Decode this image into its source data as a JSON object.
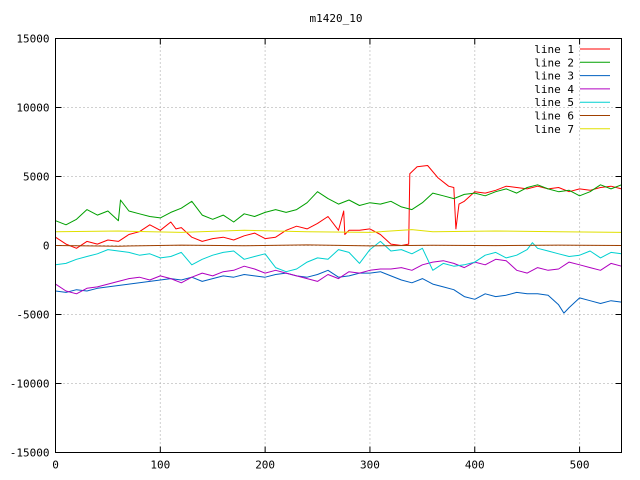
{
  "chart_data": {
    "type": "line",
    "title": "m1420_10",
    "xlabel": "",
    "ylabel": "",
    "xlim": [
      0,
      540
    ],
    "ylim": [
      -15000,
      15000
    ],
    "xticks": [
      0,
      100,
      200,
      300,
      400,
      500
    ],
    "yticks": [
      -15000,
      -10000,
      -5000,
      0,
      5000,
      10000,
      15000
    ],
    "grid": true,
    "legend_position": "top-right",
    "series": [
      {
        "name": "line 1",
        "color": "#ff0000",
        "x": [
          0,
          10,
          20,
          30,
          40,
          50,
          60,
          70,
          80,
          90,
          100,
          110,
          115,
          120,
          130,
          140,
          150,
          160,
          170,
          180,
          190,
          200,
          210,
          220,
          230,
          240,
          250,
          260,
          270,
          275,
          276,
          280,
          290,
          300,
          310,
          320,
          330,
          337,
          338,
          345,
          355,
          365,
          375,
          380,
          382,
          385,
          390,
          400,
          410,
          420,
          430,
          440,
          450,
          460,
          470,
          480,
          490,
          500,
          510,
          520,
          530,
          540
        ],
        "values": [
          600,
          100,
          -200,
          300,
          100,
          400,
          300,
          800,
          1000,
          1500,
          1100,
          1700,
          1200,
          1300,
          600,
          300,
          500,
          600,
          400,
          700,
          900,
          500,
          600,
          1100,
          1400,
          1200,
          1600,
          2100,
          1100,
          2500,
          800,
          1100,
          1100,
          1200,
          800,
          100,
          0,
          100,
          5200,
          5700,
          5800,
          4900,
          4300,
          4200,
          1200,
          3000,
          3200,
          3900,
          3800,
          4000,
          4300,
          4200,
          4100,
          4300,
          4100,
          4200,
          3900,
          4100,
          4000,
          4200,
          4300,
          4100
        ]
      },
      {
        "name": "line 2",
        "color": "#00a000",
        "x": [
          0,
          10,
          20,
          30,
          40,
          50,
          60,
          62,
          70,
          80,
          90,
          100,
          110,
          120,
          130,
          140,
          150,
          160,
          170,
          180,
          190,
          200,
          210,
          220,
          230,
          240,
          250,
          260,
          270,
          280,
          290,
          300,
          310,
          320,
          330,
          340,
          350,
          360,
          370,
          380,
          390,
          400,
          410,
          420,
          430,
          440,
          450,
          460,
          470,
          480,
          490,
          500,
          510,
          520,
          530,
          540
        ],
        "values": [
          1800,
          1500,
          1900,
          2600,
          2200,
          2500,
          1800,
          3300,
          2500,
          2300,
          2100,
          2000,
          2400,
          2700,
          3200,
          2200,
          1900,
          2200,
          1700,
          2300,
          2100,
          2400,
          2600,
          2400,
          2600,
          3100,
          3900,
          3400,
          3000,
          3300,
          2900,
          3100,
          3000,
          3200,
          2800,
          2600,
          3100,
          3800,
          3600,
          3400,
          3700,
          3800,
          3600,
          3900,
          4100,
          3800,
          4200,
          4400,
          4100,
          3900,
          4000,
          3600,
          3900,
          4400,
          4100,
          4400
        ]
      },
      {
        "name": "line 3",
        "color": "#0060c0",
        "x": [
          0,
          10,
          20,
          30,
          40,
          50,
          60,
          70,
          80,
          90,
          100,
          110,
          120,
          130,
          140,
          150,
          160,
          170,
          180,
          190,
          200,
          210,
          220,
          230,
          240,
          250,
          260,
          270,
          280,
          290,
          300,
          310,
          320,
          330,
          340,
          350,
          360,
          370,
          380,
          390,
          400,
          410,
          420,
          430,
          440,
          450,
          460,
          470,
          480,
          485,
          490,
          500,
          510,
          520,
          530,
          540
        ],
        "values": [
          -3300,
          -3400,
          -3200,
          -3300,
          -3100,
          -3000,
          -2900,
          -2800,
          -2700,
          -2600,
          -2500,
          -2400,
          -2500,
          -2300,
          -2600,
          -2400,
          -2200,
          -2300,
          -2100,
          -2200,
          -2300,
          -2100,
          -2000,
          -2200,
          -2300,
          -2100,
          -1800,
          -2300,
          -2200,
          -2000,
          -2000,
          -1900,
          -2200,
          -2500,
          -2700,
          -2400,
          -2800,
          -3000,
          -3200,
          -3700,
          -3900,
          -3500,
          -3700,
          -3600,
          -3400,
          -3500,
          -3500,
          -3600,
          -4300,
          -4900,
          -4500,
          -3800,
          -4000,
          -4200,
          -4000,
          -4100
        ]
      },
      {
        "name": "line 4",
        "color": "#b000c0",
        "x": [
          0,
          10,
          20,
          30,
          40,
          50,
          60,
          70,
          80,
          90,
          100,
          110,
          120,
          130,
          140,
          150,
          160,
          170,
          180,
          190,
          200,
          210,
          220,
          230,
          240,
          250,
          260,
          270,
          280,
          290,
          300,
          310,
          320,
          330,
          340,
          350,
          360,
          370,
          380,
          390,
          400,
          410,
          420,
          430,
          440,
          450,
          460,
          470,
          480,
          490,
          500,
          510,
          520,
          530,
          540
        ],
        "values": [
          -2800,
          -3300,
          -3500,
          -3100,
          -3000,
          -2800,
          -2600,
          -2400,
          -2300,
          -2500,
          -2200,
          -2400,
          -2700,
          -2300,
          -2000,
          -2200,
          -1900,
          -1800,
          -1500,
          -1700,
          -2000,
          -1800,
          -2000,
          -2200,
          -2400,
          -2600,
          -2100,
          -2400,
          -1900,
          -2000,
          -1800,
          -1700,
          -1700,
          -1600,
          -1800,
          -1400,
          -1200,
          -1100,
          -1300,
          -1600,
          -1200,
          -1400,
          -1000,
          -1100,
          -1800,
          -2000,
          -1600,
          -1800,
          -1700,
          -1200,
          -1400,
          -1600,
          -1800,
          -1300,
          -1500
        ]
      },
      {
        "name": "line 5",
        "color": "#00d0d0",
        "x": [
          0,
          10,
          20,
          30,
          40,
          50,
          60,
          70,
          80,
          90,
          100,
          110,
          120,
          130,
          140,
          150,
          160,
          170,
          180,
          190,
          200,
          210,
          220,
          230,
          240,
          250,
          260,
          270,
          280,
          290,
          300,
          310,
          320,
          330,
          340,
          350,
          360,
          370,
          380,
          390,
          400,
          410,
          420,
          430,
          440,
          450,
          455,
          460,
          470,
          480,
          490,
          500,
          510,
          520,
          530,
          540
        ],
        "values": [
          -1400,
          -1300,
          -1000,
          -800,
          -600,
          -300,
          -400,
          -500,
          -700,
          -600,
          -900,
          -800,
          -500,
          -1400,
          -1000,
          -700,
          -500,
          -400,
          -1000,
          -800,
          -600,
          -1600,
          -1900,
          -1700,
          -1200,
          -900,
          -1000,
          -300,
          -500,
          -1300,
          -300,
          300,
          -400,
          -300,
          -600,
          -200,
          -1800,
          -1300,
          -1500,
          -1400,
          -1200,
          -700,
          -500,
          -900,
          -700,
          -300,
          200,
          -200,
          -400,
          -600,
          -800,
          -700,
          -400,
          -900,
          -500,
          -600
        ]
      },
      {
        "name": "line 6",
        "color": "#a04000",
        "x": [
          0,
          60,
          120,
          180,
          240,
          300,
          360,
          420,
          480,
          540
        ],
        "values": [
          0,
          -50,
          30,
          -20,
          40,
          -30,
          20,
          -10,
          30,
          0
        ]
      },
      {
        "name": "line 7",
        "color": "#e0e000",
        "x": [
          0,
          60,
          120,
          180,
          240,
          300,
          340,
          360,
          420,
          480,
          540
        ],
        "values": [
          1000,
          1050,
          950,
          1100,
          1000,
          950,
          1150,
          1000,
          1050,
          1000,
          950
        ]
      }
    ]
  }
}
